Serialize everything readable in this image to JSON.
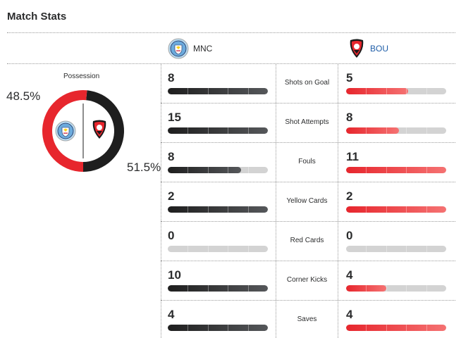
{
  "title": "Match Stats",
  "teams": {
    "home": {
      "abbr": "MNC",
      "color": "#2b2c2d",
      "logo": "manchester-city-crest-icon"
    },
    "away": {
      "abbr": "BOU",
      "color": "#e7262d",
      "logo": "bournemouth-crest-icon"
    }
  },
  "possession": {
    "label": "Possession",
    "home": "48.5%",
    "away": "51.5%",
    "home_value": 48.5,
    "away_value": 51.5
  },
  "stats": [
    {
      "label": "Shots on Goal",
      "home": "8",
      "away": "5",
      "home_fill": 1.0,
      "away_fill": 0.62
    },
    {
      "label": "Shot Attempts",
      "home": "15",
      "away": "8",
      "home_fill": 1.0,
      "away_fill": 0.53
    },
    {
      "label": "Fouls",
      "home": "8",
      "away": "11",
      "home_fill": 0.73,
      "away_fill": 1.0
    },
    {
      "label": "Yellow Cards",
      "home": "2",
      "away": "2",
      "home_fill": 1.0,
      "away_fill": 1.0
    },
    {
      "label": "Red Cards",
      "home": "0",
      "away": "0",
      "home_fill": 0,
      "away_fill": 0
    },
    {
      "label": "Corner Kicks",
      "home": "10",
      "away": "4",
      "home_fill": 1.0,
      "away_fill": 0.4
    },
    {
      "label": "Saves",
      "home": "4",
      "away": "4",
      "home_fill": 1.0,
      "away_fill": 1.0
    }
  ]
}
